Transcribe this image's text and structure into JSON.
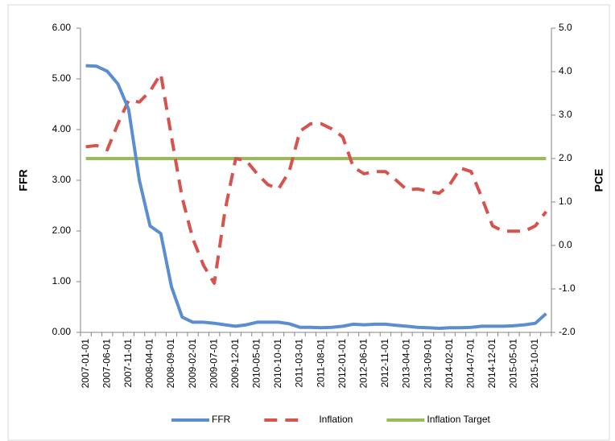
{
  "chart_data": {
    "type": "line",
    "y_label": "FFR",
    "y2_label": "PCE",
    "categories": [
      "2007-01-01",
      null,
      "2007-06-01",
      null,
      "2007-11-01",
      null,
      "2008-04-01",
      null,
      "2008-09-01",
      null,
      "2009-02-01",
      null,
      "2009-07-01",
      null,
      "2009-12-01",
      null,
      "2010-05-01",
      null,
      "2010-10-01",
      null,
      "2011-03-01",
      null,
      "2011-08-01",
      null,
      "2012-01-01",
      null,
      "2012-06-01",
      null,
      "2012-11-01",
      null,
      "2013-04-01",
      null,
      "2013-09-01",
      null,
      "2014-02-01",
      null,
      "2014-07-01",
      null,
      "2014-12-01",
      null,
      "2015-05-01",
      null,
      "2015-10-01",
      null
    ],
    "series": [
      {
        "name": "FFR",
        "color": "#5b8ed0",
        "dash": false,
        "values": [
          5.26,
          5.25,
          5.15,
          4.9,
          4.4,
          3.0,
          2.1,
          1.95,
          0.9,
          0.3,
          0.2,
          0.2,
          0.18,
          0.15,
          0.12,
          0.15,
          0.2,
          0.2,
          0.2,
          0.17,
          0.1,
          0.1,
          0.09,
          0.1,
          0.12,
          0.16,
          0.15,
          0.16,
          0.16,
          0.14,
          0.12,
          0.1,
          0.09,
          0.08,
          0.09,
          0.09,
          0.1,
          0.12,
          0.12,
          0.12,
          0.13,
          0.15,
          0.18,
          0.37
        ]
      },
      {
        "name": "Inflation",
        "color": "#d6544f",
        "dash": true,
        "axis": "y2",
        "values": [
          2.27,
          2.3,
          2.2,
          2.8,
          3.34,
          3.3,
          3.55,
          3.95,
          2.5,
          1.1,
          0.15,
          -0.46,
          -0.87,
          0.8,
          2.0,
          1.95,
          1.65,
          1.4,
          1.3,
          1.7,
          2.63,
          2.8,
          2.8,
          2.68,
          2.5,
          1.8,
          1.65,
          1.7,
          1.7,
          1.5,
          1.28,
          1.3,
          1.25,
          1.2,
          1.4,
          1.78,
          1.7,
          1.1,
          0.45,
          0.33,
          0.33,
          0.33,
          0.45,
          0.78
        ]
      },
      {
        "name": "Inflation Target",
        "color": "#9bbb59",
        "dash": false,
        "axis": "y2",
        "values": [
          2,
          2,
          2,
          2,
          2,
          2,
          2,
          2,
          2,
          2,
          2,
          2,
          2,
          2,
          2,
          2,
          2,
          2,
          2,
          2,
          2,
          2,
          2,
          2,
          2,
          2,
          2,
          2,
          2,
          2,
          2,
          2,
          2,
          2,
          2,
          2,
          2,
          2,
          2,
          2,
          2,
          2,
          2,
          2
        ]
      }
    ],
    "ylim": [
      0,
      6
    ],
    "yticks": [
      {
        "value": 0,
        "label": "0.00"
      },
      {
        "value": 1,
        "label": "1.00"
      },
      {
        "value": 2,
        "label": "2.00"
      },
      {
        "value": 3,
        "label": "3.00"
      },
      {
        "value": 4,
        "label": "4.00"
      },
      {
        "value": 5,
        "label": "5.00"
      },
      {
        "value": 6,
        "label": "6.00"
      }
    ],
    "y2lim": [
      -2,
      5
    ],
    "y2ticks": [
      {
        "value": -2,
        "label": "-2.0"
      },
      {
        "value": -1,
        "label": "-1.0"
      },
      {
        "value": 0,
        "label": "0.0"
      },
      {
        "value": 1,
        "label": "1.0"
      },
      {
        "value": 2,
        "label": "2.0"
      },
      {
        "value": 3,
        "label": "3.0"
      },
      {
        "value": 4,
        "label": "4.0"
      },
      {
        "value": 5,
        "label": "5.0"
      }
    ],
    "grid": false,
    "legend": "bottom"
  }
}
